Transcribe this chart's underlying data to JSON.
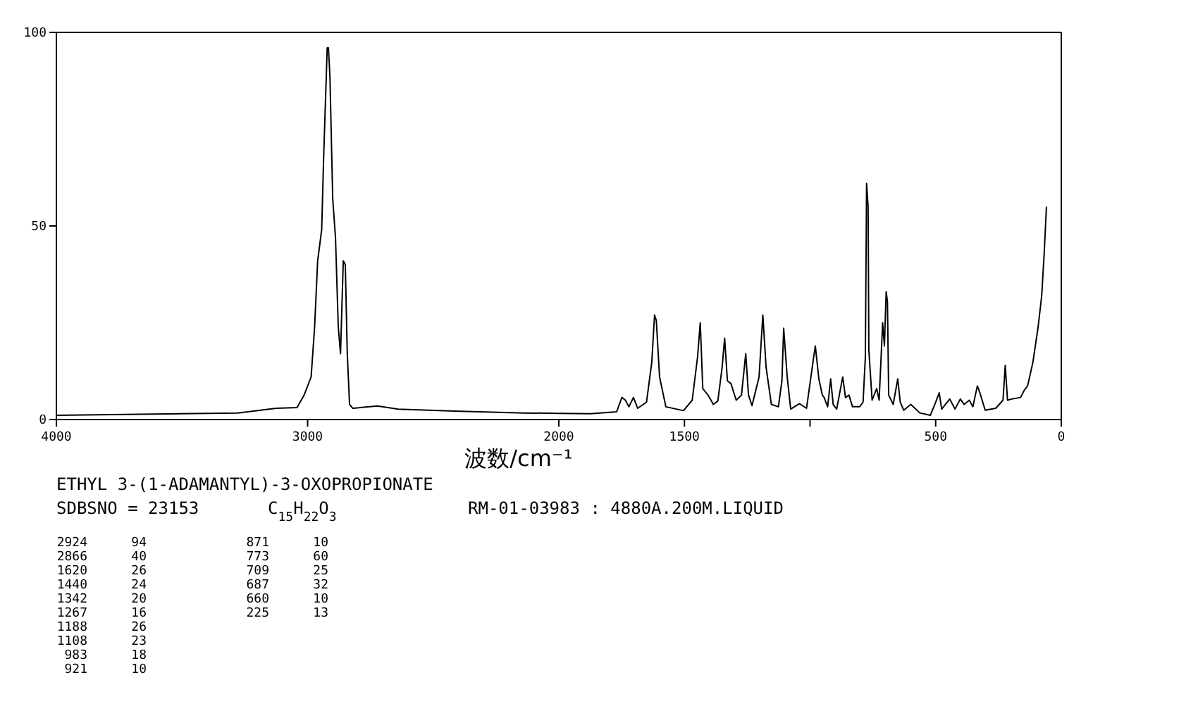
{
  "chart_data": [
    {
      "type": "line",
      "title": "ETHYL 3-(1-ADAMANTYL)-3-OXOPROPIONATE",
      "color": "#000000",
      "xlim": [
        4000,
        2000
      ],
      "ylim": [
        0,
        100
      ],
      "xticks": [
        4000,
        3000,
        2000
      ],
      "yticks": [
        0,
        50,
        100
      ],
      "grid": false,
      "marker": "none",
      "line_style": "solid",
      "x": [
        4000,
        3278,
        3125,
        3042,
        3014,
        2986,
        2972,
        2960,
        2944,
        2936,
        2922,
        2917,
        2911,
        2900,
        2889,
        2878,
        2869,
        2858,
        2850,
        2842,
        2833,
        2820,
        2722,
        2639,
        2417,
        2142,
        2000
      ],
      "values": [
        1.1,
        1.7,
        2.9,
        3.1,
        6.3,
        11,
        24,
        41,
        49,
        68,
        96,
        96,
        88.5,
        57,
        47,
        24,
        17,
        41,
        40,
        17,
        3.9,
        2.9,
        3.5,
        2.7,
        2.2,
        1.7,
        1.6
      ],
      "annotations": [
        "SDBSNO = 23153",
        "C$_{15}$H$_{22}$O$_{3}$",
        "RM-01-03983 : 4880A.200M.LIQUID",
        "2924 94",
        "2866 40",
        "1620 26",
        "1440 24",
        "1342 20",
        "1267 16",
        "1188 26",
        "1108 23",
        "983 18",
        "921 10",
        "871 10",
        "773 60",
        "709 25",
        "687 32",
        "660 10",
        "225 13"
      ]
    },
    {
      "type": "line",
      "xlabel": "波数/cm⁻¹",
      "color": "#000000",
      "xlim": [
        2000,
        0
      ],
      "ylim": [
        0,
        100
      ],
      "xticks": [
        {
          "value": 2000,
          "label": null
        },
        1500,
        {
          "value": 1000,
          "label": null
        },
        500,
        0
      ],
      "tick_labels": "x",
      "grid": false,
      "marker": "none",
      "line_style": "solid",
      "x": [
        2000,
        1874,
        1770,
        1749,
        1735,
        1721,
        1703,
        1686,
        1651,
        1630,
        1619,
        1612,
        1599,
        1574,
        1504,
        1469,
        1448,
        1437,
        1427,
        1406,
        1385,
        1367,
        1350,
        1340,
        1329,
        1315,
        1294,
        1273,
        1256,
        1245,
        1231,
        1203,
        1188,
        1175,
        1154,
        1126,
        1112,
        1105,
        1091,
        1077,
        1042,
        1014,
        986,
        979,
        965,
        951,
        944,
        930,
        918,
        908,
        894,
        870,
        859,
        845,
        831,
        803,
        789,
        780,
        775,
        769,
        766,
        753,
        735,
        725,
        711,
        704,
        697,
        692,
        687,
        669,
        651,
        641,
        627,
        599,
        563,
        521,
        500,
        486,
        476,
        444,
        423,
        402,
        387,
        366,
        352,
        334,
        324,
        303,
        261,
        232,
        223,
        214,
        197,
        162,
        148,
        134,
        113,
        92,
        78,
        68,
        59
      ],
      "values": [
        1.6,
        1.5,
        2,
        5.7,
        5,
        3.3,
        5.7,
        2.9,
        4.5,
        14.8,
        27,
        25.6,
        11,
        3.3,
        2.3,
        5,
        16,
        25,
        8,
        6.3,
        3.9,
        4.8,
        13.5,
        21,
        10,
        9.3,
        5,
        6.3,
        17,
        6.3,
        3.6,
        11,
        27,
        13.5,
        3.9,
        3.3,
        10,
        23.6,
        11,
        2.7,
        4.1,
        2.9,
        16,
        19,
        10.5,
        6.3,
        5.7,
        3.3,
        10.5,
        3.9,
        2.7,
        11,
        5.7,
        6.3,
        3.3,
        3.3,
        4.5,
        16,
        61,
        55,
        18,
        5,
        8,
        5,
        25,
        19,
        33,
        30.5,
        6.3,
        3.9,
        10.5,
        4.5,
        2.4,
        3.9,
        1.7,
        1.1,
        4.5,
        6.9,
        2.7,
        5.3,
        2.7,
        5.3,
        3.9,
        5,
        3.3,
        8.7,
        6.9,
        2.4,
        2.9,
        5,
        14,
        5,
        5.3,
        5.7,
        7.5,
        8.7,
        14.8,
        24,
        32,
        43,
        55
      ]
    }
  ]
}
